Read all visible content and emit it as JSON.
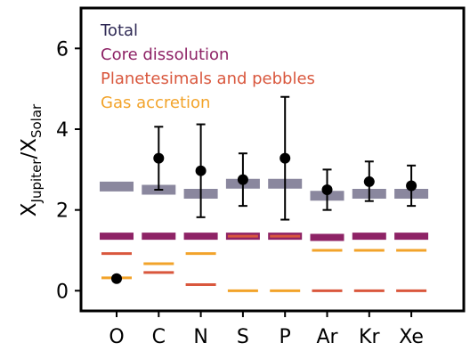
{
  "chart_data": {
    "type": "scatter",
    "ylabel_main": "X",
    "ylabel_sub1": "Jupiter",
    "ylabel_mid": "/X",
    "ylabel_sub2": "Solar",
    "ylim": [
      -0.5,
      7.0
    ],
    "yticks": [
      0,
      2,
      4,
      6
    ],
    "categories": [
      "O",
      "C",
      "N",
      "S",
      "P",
      "Ar",
      "Kr",
      "Xe"
    ],
    "grid": false,
    "legend_position": "top-left",
    "series": [
      {
        "name": "Total",
        "color": "#8a879e",
        "values": [
          2.58,
          2.5,
          2.4,
          2.65,
          2.65,
          2.35,
          2.4,
          2.4
        ]
      },
      {
        "name": "Core dissolution",
        "color": "#8e2366",
        "values": [
          1.35,
          1.35,
          1.35,
          1.35,
          1.35,
          1.32,
          1.35,
          1.35
        ]
      },
      {
        "name": "Planetesimals and pebbles",
        "color": "#d9573d",
        "values": [
          0.92,
          0.45,
          0.15,
          1.35,
          1.35,
          0.0,
          0.0,
          0.0
        ]
      },
      {
        "name": "Gas accretion",
        "color": "#f2a32a",
        "values": [
          0.32,
          0.67,
          0.92,
          0.0,
          0.0,
          1.0,
          1.0,
          1.0
        ]
      }
    ],
    "observations": {
      "values": [
        0.3,
        3.28,
        2.97,
        2.75,
        3.28,
        2.5,
        2.7,
        2.6
      ],
      "err_low": [
        0.06,
        0.78,
        1.15,
        0.65,
        1.52,
        0.5,
        0.48,
        0.5
      ],
      "err_high": [
        0.06,
        0.78,
        1.15,
        0.65,
        1.52,
        0.5,
        0.5,
        0.5
      ],
      "color": "#000000"
    }
  }
}
